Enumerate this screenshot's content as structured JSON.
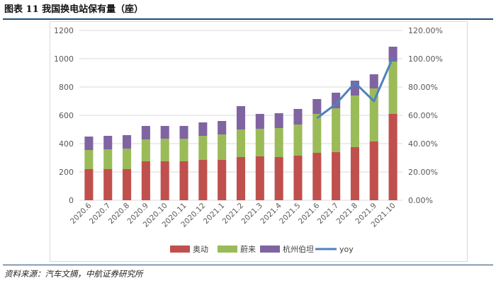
{
  "page": {
    "title": "图表 11 我国换电站保有量（座）",
    "source": "资料来源：汽车文摘，中航证券研究所"
  },
  "colors": {
    "aodong": "#c0504d",
    "weilai": "#9bbb59",
    "hangzhou": "#8064a2",
    "yoy": "#4f81bd",
    "grid": "#d9d9d9"
  },
  "chart_data": {
    "type": "bar",
    "stacked": true,
    "categories": [
      "2020.6",
      "2020.7",
      "2020.8",
      "2020.9",
      "2020.10",
      "2020.11",
      "2020.12",
      "2021.1",
      "2021.2",
      "2021.3",
      "2021.4",
      "2021.5",
      "2021.6",
      "2021.7",
      "2021.8",
      "2021.9",
      "2021.10"
    ],
    "series": [
      {
        "name": "奥动",
        "type": "bar",
        "values": [
          220,
          220,
          220,
          275,
          275,
          275,
          285,
          285,
          305,
          310,
          305,
          315,
          335,
          340,
          375,
          415,
          610
        ]
      },
      {
        "name": "蔚来",
        "type": "bar",
        "values": [
          135,
          140,
          145,
          155,
          160,
          160,
          170,
          180,
          195,
          195,
          205,
          220,
          275,
          310,
          365,
          375,
          370
        ]
      },
      {
        "name": "杭州伯坦",
        "type": "bar",
        "values": [
          95,
          95,
          95,
          95,
          90,
          90,
          95,
          95,
          165,
          105,
          105,
          110,
          105,
          110,
          105,
          100,
          105
        ]
      },
      {
        "name": "yoy",
        "type": "line",
        "axis": "right",
        "values": [
          null,
          null,
          null,
          null,
          null,
          null,
          null,
          null,
          null,
          null,
          null,
          null,
          58,
          68,
          83,
          70,
          101
        ]
      }
    ],
    "y_left": {
      "min": 0,
      "max": 1200,
      "ticks": [
        0,
        200,
        400,
        600,
        800,
        1000,
        1200
      ]
    },
    "y_right": {
      "min": 0,
      "max": 120,
      "ticks": [
        "0.00%",
        "20.00%",
        "40.00%",
        "60.00%",
        "80.00%",
        "100.00%",
        "120.00%"
      ]
    },
    "grid": true,
    "legend_position": "bottom"
  }
}
